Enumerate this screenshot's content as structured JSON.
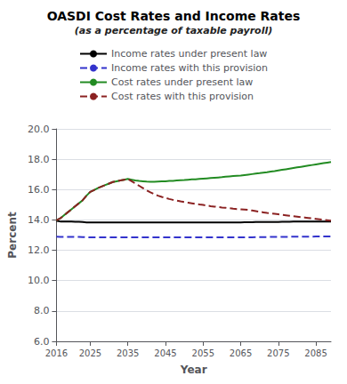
{
  "chart_data": {
    "type": "line",
    "title": "OASDI Cost Rates and Income Rates",
    "subtitle": "(as a percentage of taxable payroll)",
    "xlabel": "Year",
    "ylabel": "Percent",
    "xlim": [
      2016,
      2089
    ],
    "ylim": [
      6.0,
      20.0
    ],
    "xticks": [
      2016,
      2025,
      2035,
      2045,
      2055,
      2065,
      2075,
      2085
    ],
    "yticks": [
      {
        "value": 6.0,
        "label": "6.0"
      },
      {
        "value": 8.0,
        "label": "8.0"
      },
      {
        "value": 10.0,
        "label": "10.0"
      },
      {
        "value": 12.0,
        "label": "12.0"
      },
      {
        "value": 14.0,
        "label": "14.0"
      },
      {
        "value": 16.0,
        "label": "16.0"
      },
      {
        "value": 18.0,
        "label": "18.0"
      },
      {
        "value": 20.0,
        "label": "20.0"
      }
    ],
    "grid": true,
    "legend": "top",
    "x": [
      2016,
      2017,
      2018,
      2019,
      2020,
      2021,
      2022,
      2023,
      2024,
      2025,
      2026,
      2027,
      2028,
      2029,
      2030,
      2031,
      2032,
      2033,
      2034,
      2035,
      2036,
      2037,
      2038,
      2039,
      2040,
      2041,
      2042,
      2043,
      2044,
      2045,
      2046,
      2047,
      2048,
      2049,
      2050,
      2051,
      2052,
      2053,
      2054,
      2055,
      2056,
      2057,
      2058,
      2059,
      2060,
      2061,
      2062,
      2063,
      2064,
      2065,
      2066,
      2067,
      2068,
      2069,
      2070,
      2071,
      2072,
      2073,
      2074,
      2075,
      2076,
      2077,
      2078,
      2079,
      2080,
      2081,
      2082,
      2083,
      2084,
      2085,
      2086,
      2087,
      2088,
      2089
    ],
    "series": [
      {
        "name": "Income rates under present law",
        "color": "#000000",
        "line_style": "solid",
        "values": [
          13.94,
          13.9,
          13.9,
          13.9,
          13.9,
          13.88,
          13.88,
          13.86,
          13.84,
          13.83,
          13.83,
          13.83,
          13.83,
          13.83,
          13.84,
          13.84,
          13.84,
          13.84,
          13.84,
          13.84,
          13.84,
          13.84,
          13.84,
          13.84,
          13.84,
          13.84,
          13.84,
          13.84,
          13.84,
          13.84,
          13.84,
          13.84,
          13.84,
          13.84,
          13.84,
          13.84,
          13.84,
          13.84,
          13.84,
          13.84,
          13.84,
          13.84,
          13.84,
          13.84,
          13.84,
          13.84,
          13.84,
          13.84,
          13.84,
          13.84,
          13.85,
          13.85,
          13.85,
          13.86,
          13.86,
          13.86,
          13.86,
          13.87,
          13.87,
          13.87,
          13.88,
          13.88,
          13.88,
          13.89,
          13.89,
          13.89,
          13.89,
          13.89,
          13.89,
          13.9,
          13.9,
          13.9,
          13.9,
          13.9
        ]
      },
      {
        "name": "Income rates with this provision",
        "color": "#3333cc",
        "line_style": "dashed",
        "values": [
          12.9,
          12.89,
          12.89,
          12.89,
          12.89,
          12.88,
          12.88,
          12.87,
          12.86,
          12.85,
          12.85,
          12.85,
          12.85,
          12.85,
          12.85,
          12.85,
          12.85,
          12.85,
          12.85,
          12.85,
          12.85,
          12.85,
          12.85,
          12.85,
          12.85,
          12.85,
          12.85,
          12.85,
          12.85,
          12.85,
          12.85,
          12.85,
          12.85,
          12.85,
          12.85,
          12.85,
          12.85,
          12.85,
          12.85,
          12.85,
          12.85,
          12.85,
          12.85,
          12.85,
          12.85,
          12.85,
          12.85,
          12.85,
          12.85,
          12.85,
          12.86,
          12.86,
          12.86,
          12.87,
          12.87,
          12.87,
          12.87,
          12.88,
          12.88,
          12.88,
          12.89,
          12.89,
          12.89,
          12.9,
          12.9,
          12.9,
          12.9,
          12.9,
          12.9,
          12.91,
          12.91,
          12.91,
          12.91,
          12.91
        ]
      },
      {
        "name": "Cost rates under present law",
        "color": "#228B22",
        "line_style": "solid",
        "values": [
          13.97,
          14.1,
          14.3,
          14.5,
          14.7,
          14.9,
          15.1,
          15.3,
          15.6,
          15.85,
          15.97,
          16.1,
          16.2,
          16.3,
          16.4,
          16.5,
          16.55,
          16.6,
          16.65,
          16.7,
          16.65,
          16.6,
          16.57,
          16.55,
          16.53,
          16.52,
          16.52,
          16.53,
          16.54,
          16.55,
          16.57,
          16.58,
          16.6,
          16.62,
          16.63,
          16.65,
          16.67,
          16.68,
          16.7,
          16.72,
          16.74,
          16.76,
          16.78,
          16.8,
          16.82,
          16.85,
          16.87,
          16.89,
          16.91,
          16.93,
          16.96,
          16.99,
          17.02,
          17.05,
          17.08,
          17.12,
          17.15,
          17.19,
          17.22,
          17.26,
          17.3,
          17.34,
          17.38,
          17.42,
          17.46,
          17.5,
          17.54,
          17.58,
          17.62,
          17.66,
          17.7,
          17.74,
          17.78,
          17.82
        ]
      },
      {
        "name": "Cost rates with this provision",
        "color": "#8B2222",
        "line_style": "dashed",
        "values": [
          13.97,
          14.1,
          14.3,
          14.5,
          14.7,
          14.9,
          15.1,
          15.3,
          15.6,
          15.85,
          15.97,
          16.1,
          16.2,
          16.3,
          16.4,
          16.5,
          16.55,
          16.6,
          16.65,
          16.7,
          16.55,
          16.4,
          16.25,
          16.1,
          15.95,
          15.82,
          15.7,
          15.6,
          15.52,
          15.45,
          15.38,
          15.32,
          15.27,
          15.22,
          15.18,
          15.14,
          15.1,
          15.06,
          15.02,
          14.99,
          14.95,
          14.91,
          14.88,
          14.85,
          14.82,
          14.8,
          14.77,
          14.74,
          14.72,
          14.7,
          14.68,
          14.66,
          14.62,
          14.58,
          14.54,
          14.5,
          14.46,
          14.43,
          14.4,
          14.37,
          14.34,
          14.31,
          14.28,
          14.25,
          14.22,
          14.19,
          14.16,
          14.13,
          14.1,
          14.07,
          14.04,
          14.01,
          13.98,
          13.95
        ]
      }
    ]
  }
}
